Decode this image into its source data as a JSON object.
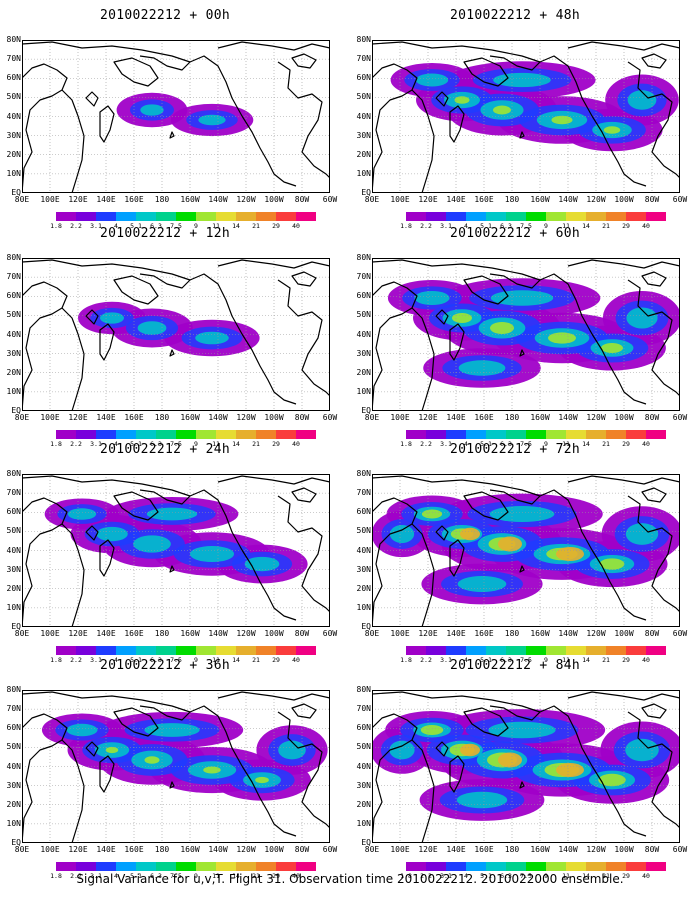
{
  "caption": "Signal Variance for u,v,T. Flight 31. Observation time 2010022212. 2010022000 ensemble.",
  "panels": [
    {
      "title": "2010022212 + 00h",
      "coverage": 0.15
    },
    {
      "title": "2010022212 + 48h",
      "coverage": 0.7
    },
    {
      "title": "2010022212 + 12h",
      "coverage": 0.3
    },
    {
      "title": "2010022212 + 60h",
      "coverage": 0.8
    },
    {
      "title": "2010022212 + 24h",
      "coverage": 0.55
    },
    {
      "title": "2010022212 + 72h",
      "coverage": 0.85
    },
    {
      "title": "2010022212 + 36h",
      "coverage": 0.65
    },
    {
      "title": "2010022212 + 84h",
      "coverage": 0.9
    }
  ],
  "lon_labels": [
    "80E",
    "100E",
    "120E",
    "140E",
    "160E",
    "180",
    "160W",
    "140W",
    "120W",
    "100W",
    "80W",
    "60W"
  ],
  "lat_labels": [
    "80N",
    "70N",
    "60N",
    "50N",
    "40N",
    "30N",
    "20N",
    "10N",
    "EQ"
  ],
  "colorbar": {
    "labels": [
      "1.8",
      "2.2",
      "3.1",
      "4",
      "5.1",
      "6.3",
      "7.5",
      "9",
      "11",
      "14",
      "21",
      "29",
      "40"
    ],
    "colors": [
      "#a000c8",
      "#7800dc",
      "#1e3cff",
      "#00a0ff",
      "#00c8c8",
      "#00d28c",
      "#00dc00",
      "#a0e632",
      "#e6dc32",
      "#e6af2d",
      "#f08228",
      "#fa3c3c",
      "#f00082"
    ]
  }
}
